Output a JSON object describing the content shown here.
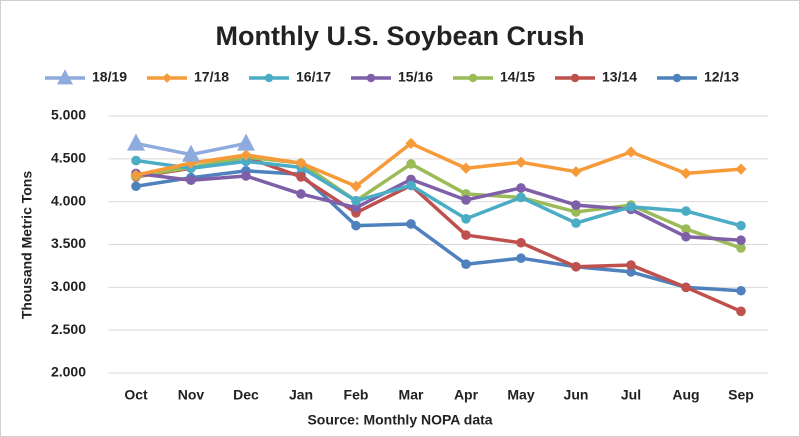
{
  "chart_data": {
    "type": "line",
    "title": "Monthly U.S. Soybean Crush",
    "ylabel": "Thousand  Metric Tons",
    "xlabel": "Source: Monthly NOPA data",
    "categories": [
      "Oct",
      "Nov",
      "Dec",
      "Jan",
      "Feb",
      "Mar",
      "Apr",
      "May",
      "Jun",
      "Jul",
      "Aug",
      "Sep"
    ],
    "ylim": [
      2000,
      5000
    ],
    "yticks": [
      {
        "value": 2000,
        "label": "2.000"
      },
      {
        "value": 2500,
        "label": "2.500"
      },
      {
        "value": 3000,
        "label": "3.000"
      },
      {
        "value": 3500,
        "label": "3.500"
      },
      {
        "value": 4000,
        "label": "4.000"
      },
      {
        "value": 4500,
        "label": "4.500"
      },
      {
        "value": 5000,
        "label": "5.000"
      }
    ],
    "grid": true,
    "legend": "top",
    "series": [
      {
        "name": "18/19",
        "color": "#8faadc",
        "marker": "triangle",
        "values": [
          4680,
          4550,
          4680,
          null,
          null,
          null,
          null,
          null,
          null,
          null,
          null,
          null
        ]
      },
      {
        "name": "17/18",
        "color": "#f79b3a",
        "marker": "diamond",
        "values": [
          4310,
          4450,
          4545,
          4450,
          4180,
          4680,
          4390,
          4460,
          4350,
          4580,
          4330,
          4380
        ]
      },
      {
        "name": "16/17",
        "color": "#4bacc6",
        "marker": "circle",
        "values": [
          4480,
          4390,
          4470,
          4400,
          4010,
          4190,
          3800,
          4050,
          3750,
          3940,
          3890,
          3720
        ]
      },
      {
        "name": "15/16",
        "color": "#7f5fa8",
        "marker": "circle",
        "values": [
          4330,
          4250,
          4300,
          4090,
          3930,
          4260,
          4020,
          4160,
          3960,
          3910,
          3590,
          3550
        ]
      },
      {
        "name": "14/15",
        "color": "#9bbb59",
        "marker": "circle",
        "values": [
          4300,
          4400,
          4520,
          4450,
          4010,
          4440,
          4090,
          4050,
          3880,
          3960,
          3680,
          3460
        ]
      },
      {
        "name": "13/14",
        "color": "#c0504d",
        "marker": "circle",
        "values": [
          4290,
          4390,
          4520,
          4290,
          3870,
          4190,
          3610,
          3520,
          3240,
          3260,
          3000,
          2720
        ]
      },
      {
        "name": "12/13",
        "color": "#4f81bd",
        "marker": "circle",
        "values": [
          4180,
          4280,
          4360,
          4320,
          3720,
          3740,
          3270,
          3340,
          3240,
          3180,
          3000,
          2960
        ]
      }
    ]
  }
}
